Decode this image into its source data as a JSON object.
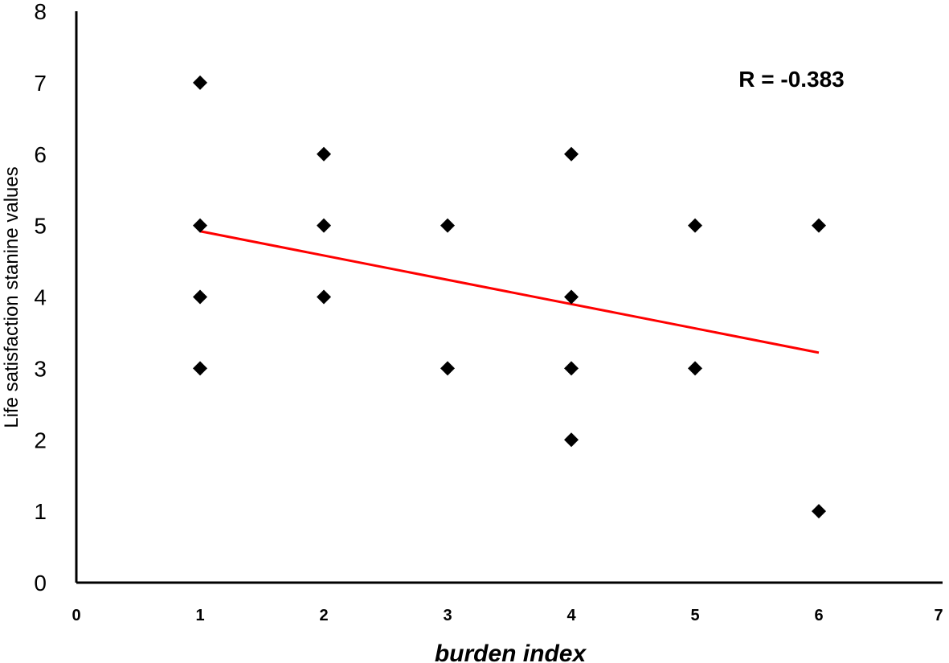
{
  "chart_data": {
    "type": "scatter",
    "title": "",
    "xlabel": "burden index",
    "ylabel": "Life satisfaction stanine values",
    "xlim": [
      0,
      7
    ],
    "ylim": [
      0,
      8
    ],
    "x_ticks": [
      "0",
      "1",
      "2",
      "3",
      "4",
      "5",
      "6",
      "7"
    ],
    "y_ticks": [
      "0",
      "1",
      "2",
      "3",
      "4",
      "5",
      "6",
      "7",
      "8"
    ],
    "grid": false,
    "legend": "none",
    "marker": "diamond",
    "marker_color": "#000000",
    "points": [
      {
        "x": 1,
        "y": 7
      },
      {
        "x": 1,
        "y": 5
      },
      {
        "x": 1,
        "y": 4
      },
      {
        "x": 1,
        "y": 3
      },
      {
        "x": 2,
        "y": 6
      },
      {
        "x": 2,
        "y": 5
      },
      {
        "x": 2,
        "y": 4
      },
      {
        "x": 3,
        "y": 5
      },
      {
        "x": 3,
        "y": 3
      },
      {
        "x": 4,
        "y": 6
      },
      {
        "x": 4,
        "y": 4
      },
      {
        "x": 4,
        "y": 3
      },
      {
        "x": 4,
        "y": 2
      },
      {
        "x": 5,
        "y": 5
      },
      {
        "x": 5,
        "y": 3
      },
      {
        "x": 6,
        "y": 5
      },
      {
        "x": 6,
        "y": 1
      }
    ],
    "trendline": {
      "color": "#ff0000",
      "from": {
        "x": 1,
        "y": 4.92
      },
      "to": {
        "x": 6,
        "y": 3.22
      }
    },
    "annotation": "R = -0.383"
  }
}
